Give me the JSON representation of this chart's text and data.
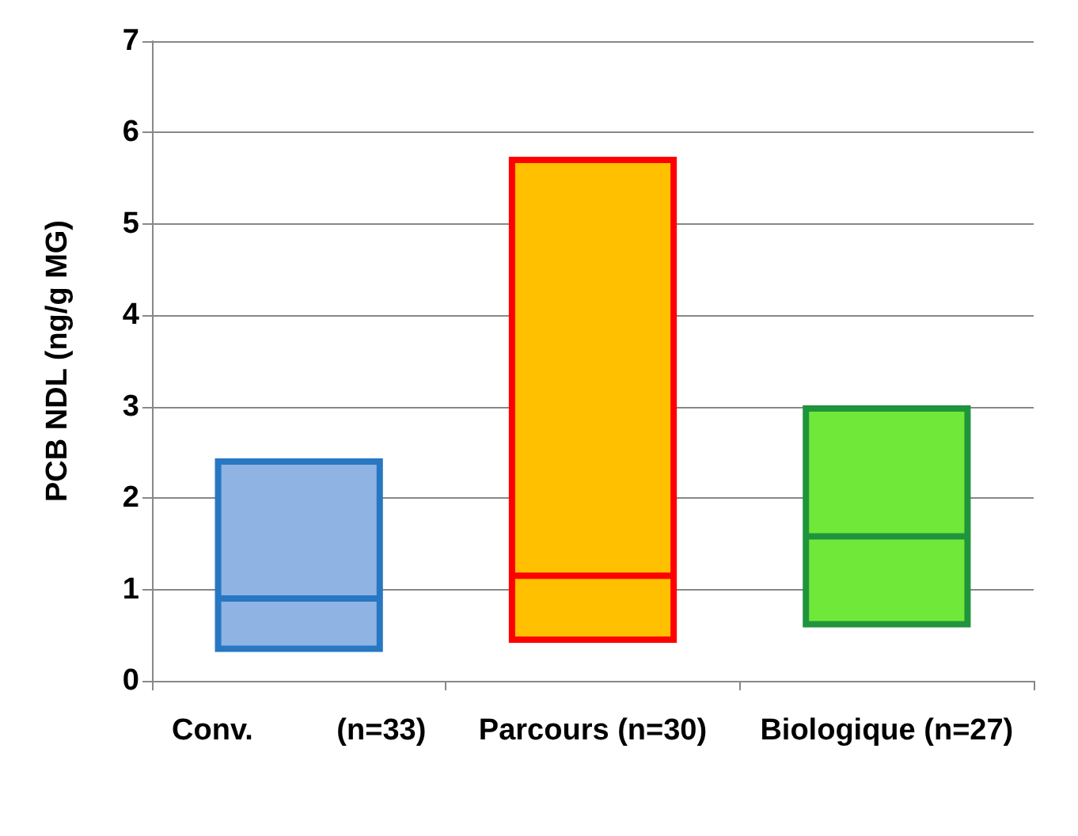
{
  "chart_data": {
    "type": "box",
    "ylabel": "PCB NDL (ng/g MG)",
    "categories": [
      "Conv.          (n=33)",
      "Parcours (n=30)",
      "Biologique (n=27)"
    ],
    "boxes": [
      {
        "low": 0.35,
        "q1": 0.35,
        "median": 0.9,
        "q3": 2.4,
        "high": 2.4
      },
      {
        "low": 0.45,
        "q1": 0.45,
        "median": 1.15,
        "q3": 5.7,
        "high": 5.7
      },
      {
        "low": 0.62,
        "q1": 0.62,
        "median": 1.58,
        "q3": 2.98,
        "high": 2.98
      }
    ],
    "colors": [
      "#8fb4e3",
      "#ffc000",
      "#70e83a"
    ],
    "ylim": [
      0,
      7
    ],
    "yticks": [
      0,
      1,
      2,
      3,
      4,
      5,
      6,
      7
    ],
    "grid": "y"
  }
}
